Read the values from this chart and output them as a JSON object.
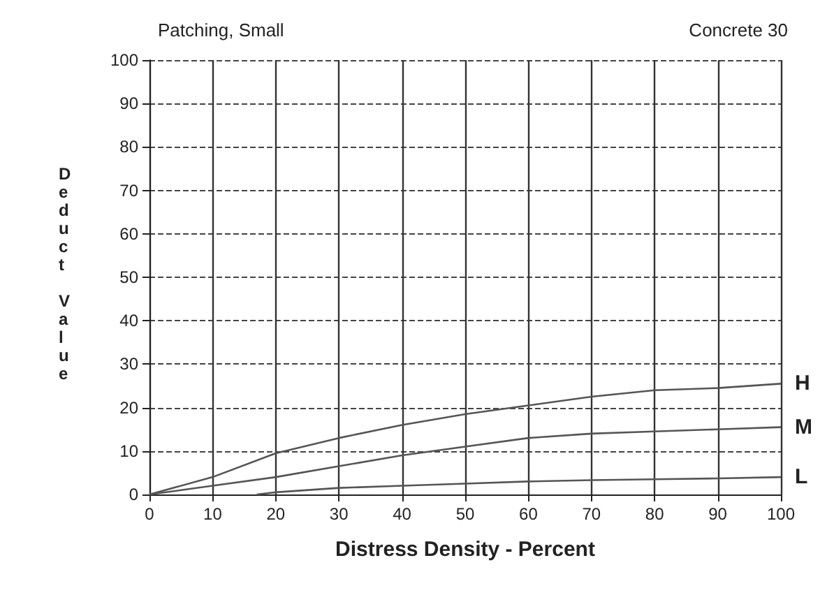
{
  "chart_data": {
    "type": "line",
    "title": "Patching, Small",
    "subtitle": "Concrete 30",
    "xlabel": "Distress Density - Percent",
    "ylabel": "Deduct Value",
    "x": [
      0,
      10,
      20,
      30,
      40,
      50,
      60,
      70,
      80,
      90,
      100
    ],
    "series": [
      {
        "name": "H",
        "color": "#555555",
        "values": [
          0,
          4,
          9.5,
          13,
          16,
          18.5,
          20.5,
          22.5,
          24,
          24.5,
          25.5
        ]
      },
      {
        "name": "M",
        "color": "#555555",
        "values": [
          0,
          2,
          4,
          6.5,
          9,
          11,
          13,
          14,
          14.5,
          15,
          15.5
        ]
      },
      {
        "name": "L",
        "color": "#555555",
        "x": [
          17,
          20,
          30,
          40,
          50,
          60,
          70,
          80,
          90,
          100
        ],
        "values": [
          0,
          0.5,
          1.5,
          2,
          2.5,
          3,
          3.3,
          3.5,
          3.7,
          4
        ]
      }
    ],
    "xlim": [
      0,
      100
    ],
    "xticks": [
      0,
      10,
      20,
      30,
      40,
      50,
      60,
      70,
      80,
      90,
      100
    ],
    "ylim": [
      0,
      100
    ],
    "yticks": [
      0,
      10,
      20,
      30,
      40,
      50,
      60,
      70,
      80,
      90,
      100
    ],
    "grid": true,
    "legend": false,
    "marker": "none",
    "line_style": "solid"
  }
}
